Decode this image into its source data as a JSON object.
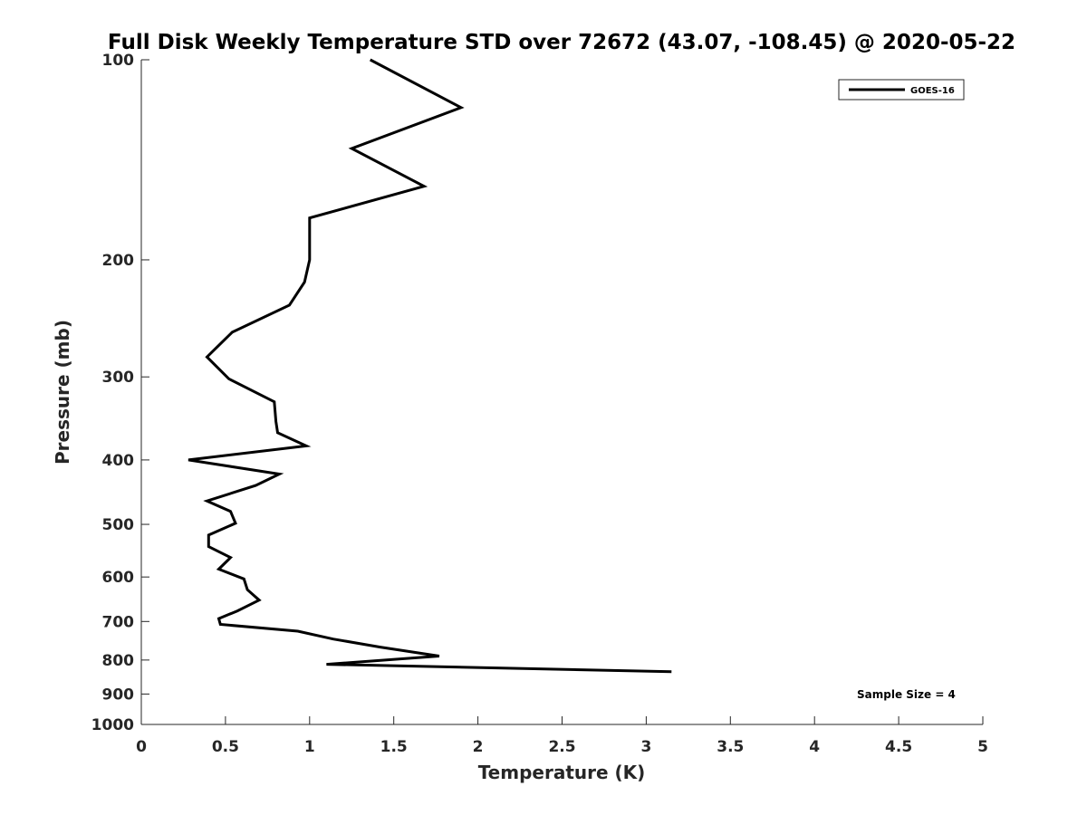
{
  "chart_data": {
    "type": "line",
    "title": "Full Disk Weekly Temperature STD over 72672 (43.07, -108.45) @ 2020-05-22",
    "xlabel": "Temperature (K)",
    "ylabel": "Pressure (mb)",
    "xlim": [
      0,
      5
    ],
    "ylim": [
      1000,
      100
    ],
    "y_scale": "log",
    "y_reversed": true,
    "x_ticks": [
      "0",
      "0.5",
      "1",
      "1.5",
      "2",
      "2.5",
      "3",
      "3.5",
      "4",
      "4.5",
      "5"
    ],
    "y_ticks": [
      "100",
      "200",
      "300",
      "400",
      "500",
      "600",
      "700",
      "800",
      "900",
      "1000"
    ],
    "grid": false,
    "legend_position": "top-right",
    "annotation": "Sample Size = 4",
    "series": [
      {
        "name": "GOES-16",
        "color": "#000000",
        "x": [
          1.36,
          1.9,
          1.25,
          1.68,
          1.0,
          1.0,
          1.0,
          0.97,
          0.88,
          0.54,
          0.39,
          0.52,
          0.79,
          0.8,
          0.81,
          0.98,
          0.28,
          0.82,
          0.68,
          0.39,
          0.53,
          0.56,
          0.4,
          0.4,
          0.53,
          0.46,
          0.61,
          0.63,
          0.7,
          0.57,
          0.46,
          0.47,
          0.93,
          1.14,
          1.42,
          1.77,
          1.1,
          3.15
        ],
        "y": [
          100,
          118,
          136,
          155,
          173,
          187,
          200,
          216,
          234,
          257,
          280,
          302,
          327,
          350,
          364,
          381,
          400,
          420,
          437,
          461,
          478,
          498,
          519,
          540,
          561,
          584,
          604,
          627,
          650,
          675,
          693,
          707,
          724,
          744,
          765,
          789,
          812,
          833
        ]
      }
    ]
  }
}
